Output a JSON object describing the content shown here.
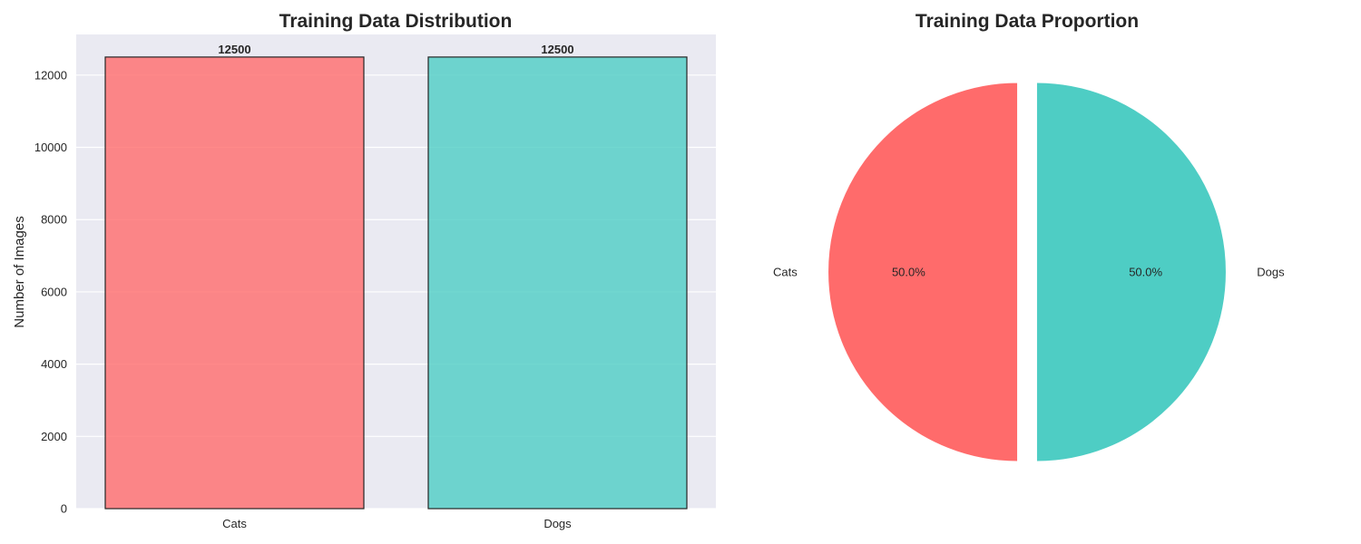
{
  "chart_data": [
    {
      "type": "bar",
      "title": "Training Data Distribution",
      "xlabel": "",
      "ylabel": "Number of Images",
      "categories": [
        "Cats",
        "Dogs"
      ],
      "values": [
        12500,
        12500
      ],
      "data_labels": [
        "12500",
        "12500"
      ],
      "colors": [
        "#ff6b6b",
        "#4ecdc4"
      ],
      "edge_color": "#262626",
      "ylim": [
        0,
        13125
      ],
      "yticks": [
        0,
        2000,
        4000,
        6000,
        8000,
        10000,
        12000
      ],
      "ytick_labels": [
        "0",
        "2000",
        "4000",
        "6000",
        "8000",
        "10000",
        "12000"
      ],
      "grid": true,
      "background": "#eaeaf2"
    },
    {
      "type": "pie",
      "title": "Training Data Proportion",
      "labels": [
        "Cats",
        "Dogs"
      ],
      "values": [
        50.0,
        50.0
      ],
      "pct_labels": [
        "50.0%",
        "50.0%"
      ],
      "colors": [
        "#ff6b6b",
        "#4ecdc4"
      ],
      "explode": [
        0.05,
        0.05
      ],
      "start_angle": 90
    }
  ]
}
